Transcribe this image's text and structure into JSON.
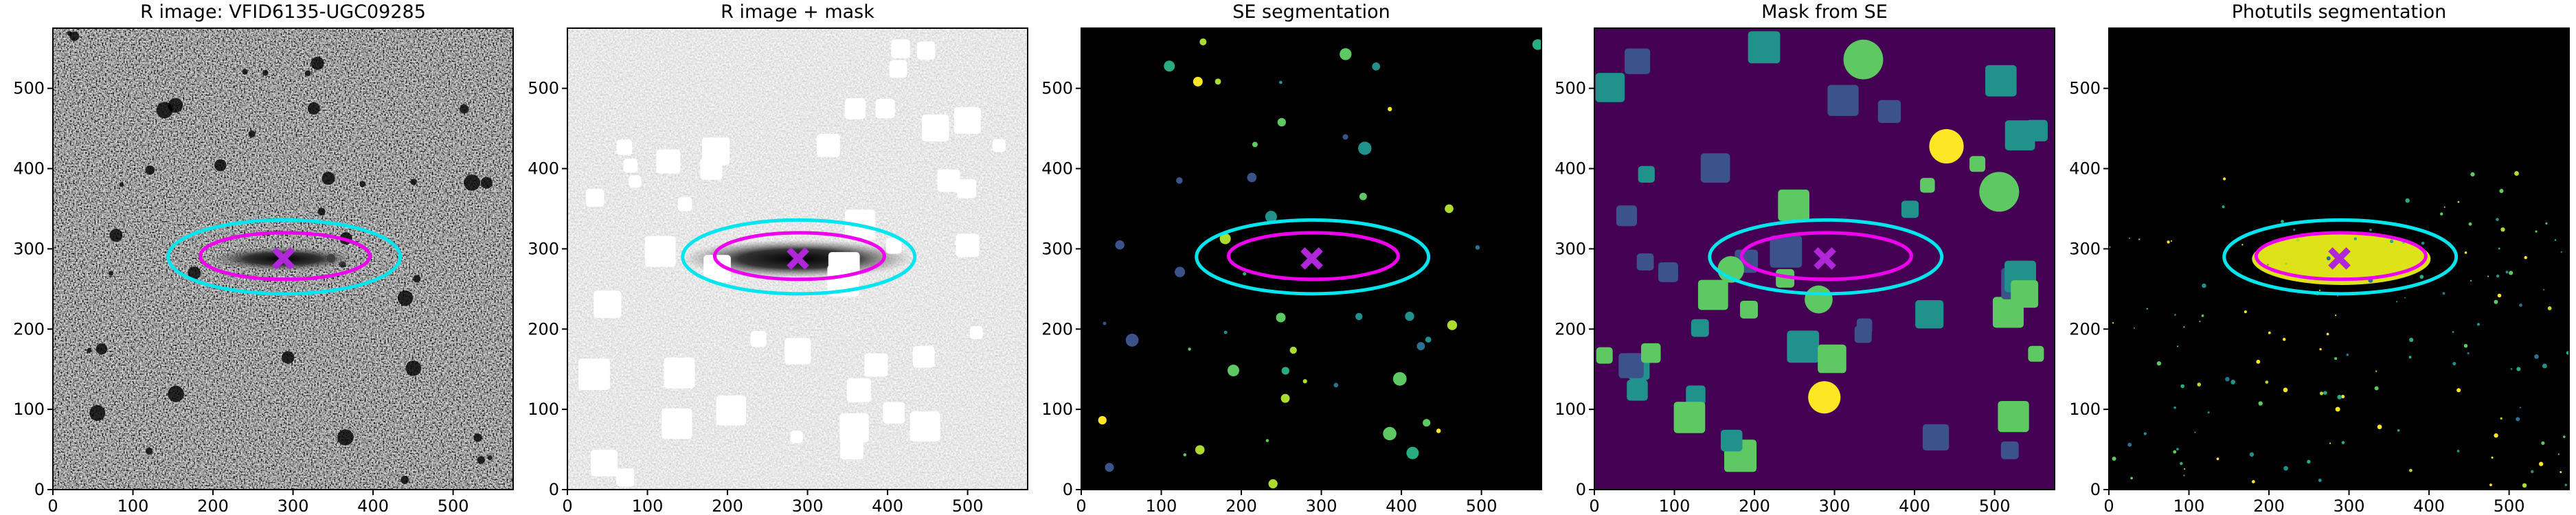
{
  "chart_data": [
    {
      "type": "image",
      "title": "R image: VFID6135-UGC09285",
      "xlim": [
        0,
        575
      ],
      "ylim": [
        0,
        575
      ],
      "xticks": [
        0,
        100,
        200,
        300,
        400,
        500
      ],
      "yticks": [
        0,
        100,
        200,
        300,
        400,
        500
      ],
      "ellipses": [
        {
          "color": "#00e5ee",
          "cx": 289,
          "cy": 290,
          "a": 145,
          "b": 46
        },
        {
          "color": "#ee00ee",
          "cx": 290,
          "cy": 291,
          "a": 106,
          "b": 29
        }
      ],
      "center": {
        "x": 288,
        "y": 288,
        "color": "#b026d9"
      }
    },
    {
      "type": "image",
      "title": "R image + mask",
      "xlim": [
        0,
        575
      ],
      "ylim": [
        0,
        575
      ],
      "xticks": [
        0,
        100,
        200,
        300,
        400,
        500
      ],
      "yticks": [
        0,
        100,
        200,
        300,
        400,
        500
      ],
      "ellipses": [
        {
          "color": "#00e5ee",
          "cx": 289,
          "cy": 290,
          "a": 145,
          "b": 46
        },
        {
          "color": "#ee00ee",
          "cx": 290,
          "cy": 291,
          "a": 106,
          "b": 29
        }
      ],
      "center": {
        "x": 288,
        "y": 288,
        "color": "#b026d9"
      }
    },
    {
      "type": "image",
      "title": "SE segmentation",
      "xlim": [
        0,
        575
      ],
      "ylim": [
        0,
        575
      ],
      "xticks": [
        0,
        100,
        200,
        300,
        400,
        500
      ],
      "yticks": [
        0,
        100,
        200,
        300,
        400,
        500
      ],
      "ellipses": [
        {
          "color": "#00e5ee",
          "cx": 289,
          "cy": 290,
          "a": 145,
          "b": 46
        },
        {
          "color": "#ee00ee",
          "cx": 290,
          "cy": 291,
          "a": 106,
          "b": 29
        }
      ],
      "center": {
        "x": 288,
        "y": 288,
        "color": "#b026d9"
      }
    },
    {
      "type": "image",
      "title": "Mask from SE",
      "xlim": [
        0,
        575
      ],
      "ylim": [
        0,
        575
      ],
      "xticks": [
        0,
        100,
        200,
        300,
        400,
        500
      ],
      "yticks": [
        0,
        100,
        200,
        300,
        400,
        500
      ],
      "ellipses": [
        {
          "color": "#00e5ee",
          "cx": 289,
          "cy": 290,
          "a": 145,
          "b": 46
        },
        {
          "color": "#ee00ee",
          "cx": 290,
          "cy": 291,
          "a": 106,
          "b": 29
        }
      ],
      "center": {
        "x": 288,
        "y": 288,
        "color": "#b026d9"
      }
    },
    {
      "type": "image",
      "title": "Photutils segmentation",
      "xlim": [
        0,
        575
      ],
      "ylim": [
        0,
        575
      ],
      "xticks": [
        0,
        100,
        200,
        300,
        400,
        500
      ],
      "yticks": [
        0,
        100,
        200,
        300,
        400,
        500
      ],
      "ellipses": [
        {
          "color": "#00e5ee",
          "cx": 289,
          "cy": 290,
          "a": 145,
          "b": 46
        },
        {
          "color": "#ee00ee",
          "cx": 290,
          "cy": 291,
          "a": 106,
          "b": 29
        }
      ],
      "center": {
        "x": 288,
        "y": 288,
        "color": "#b026d9"
      }
    }
  ]
}
